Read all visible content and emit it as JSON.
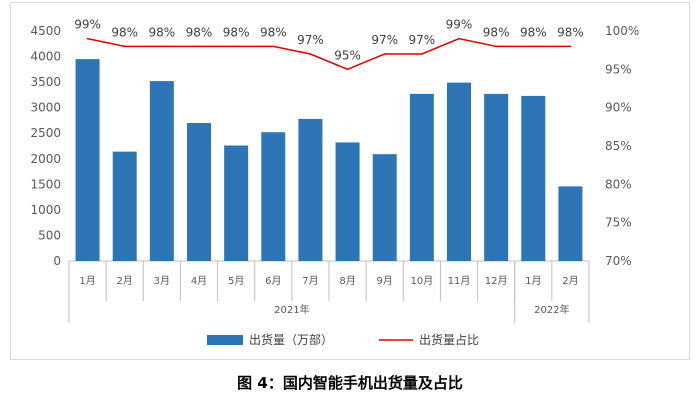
{
  "caption": "图 4：国内智能手机出货量及占比",
  "chart_data": {
    "type": "bar",
    "categories": [
      "1月",
      "2月",
      "3月",
      "4月",
      "5月",
      "6月",
      "7月",
      "8月",
      "9月",
      "10月",
      "11月",
      "12月",
      "1月",
      "2月"
    ],
    "groups": [
      {
        "label": "2021年",
        "from": 0,
        "to": 11
      },
      {
        "label": "2022年",
        "from": 12,
        "to": 13
      }
    ],
    "series": [
      {
        "name": "出货量（万部）",
        "type": "bar",
        "axis": "left",
        "color": "#2e75b6",
        "values": [
          3950,
          2140,
          3520,
          2700,
          2260,
          2520,
          2780,
          2320,
          2090,
          3270,
          3490,
          3270,
          3230,
          1460
        ]
      },
      {
        "name": "出货量占比",
        "type": "line",
        "axis": "right",
        "color": "#e00000",
        "values": [
          99,
          98,
          98,
          98,
          98,
          98,
          97,
          95,
          97,
          97,
          99,
          98,
          98,
          98
        ],
        "value_labels": [
          "99%",
          "98%",
          "98%",
          "98%",
          "98%",
          "98%",
          "97%",
          "95%",
          "97%",
          "97%",
          "99%",
          "98%",
          "98%",
          "98%"
        ]
      }
    ],
    "y_left": {
      "min": 0,
      "max": 4500,
      "step": 500
    },
    "y_right": {
      "min": 70,
      "max": 100,
      "step": 5,
      "unit": "%"
    },
    "legend_position": "bottom",
    "grid": false
  }
}
